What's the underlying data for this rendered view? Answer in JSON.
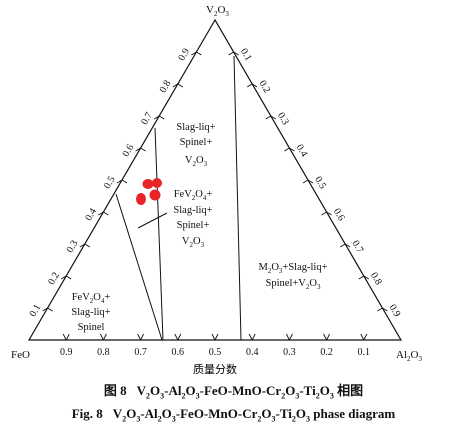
{
  "diagram": {
    "vertices": {
      "top": {
        "text": "V",
        "sub1": "2",
        "mid": "O",
        "sub2": "3"
      },
      "left": {
        "text": "FeO"
      },
      "right": {
        "text": "Al",
        "sub1": "2",
        "mid": "O",
        "sub2": "3"
      }
    },
    "left_edge_ticks": [
      "0.1",
      "0.2",
      "0.3",
      "0.4",
      "0.5",
      "0.6",
      "0.7",
      "0.8",
      "0.9"
    ],
    "right_edge_ticks": [
      "0.1",
      "0.2",
      "0.3",
      "0.4",
      "0.5",
      "0.6",
      "0.7",
      "0.8",
      "0.9"
    ],
    "bottom_edge_ticks": [
      "0.9",
      "0.8",
      "0.7",
      "0.6",
      "0.5",
      "0.4",
      "0.3",
      "0.2",
      "0.1"
    ],
    "bottom_axis_title": "质量分数",
    "regions": {
      "upper": [
        "Slag-liq+",
        "Spinel+",
        "V2O3"
      ],
      "middle": [
        "FeV2O4+",
        "Slag-liq+",
        "Spinel+",
        "V2O3"
      ],
      "lower_left": [
        "FeV2O4+",
        "Slag-liq+",
        "Spinel"
      ],
      "right": [
        "M2O3+Slag-liq+",
        "Spinel+V2O3"
      ]
    },
    "marker_color": "#e8262a",
    "line_color": "#111111"
  },
  "caption_cn": {
    "figure_no": "图 8",
    "formula": "V2O3-Al2O3-FeO-MnO-Cr2O3-Ti2O3",
    "suffix": "相图"
  },
  "caption_en": {
    "figure_no": "Fig. 8",
    "formula": "V2O3-Al2O3-FeO-MnO-Cr2O3-Ti2O3",
    "suffix": "phase diagram"
  }
}
